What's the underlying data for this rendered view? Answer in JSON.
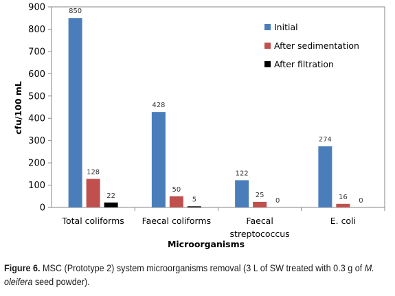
{
  "chart_data": {
    "type": "bar",
    "categories": [
      "Total coliforms",
      "Faecal coliforms",
      "Faecal\nstreptococcus",
      "E. coli"
    ],
    "series": [
      {
        "name": "Initial",
        "color": "#4a7ebb",
        "values": [
          850,
          428,
          122,
          274
        ]
      },
      {
        "name": "After sedimentation",
        "color": "#c0504d",
        "values": [
          128,
          50,
          25,
          16
        ]
      },
      {
        "name": "After filtration",
        "color": "#000000",
        "values": [
          22,
          5,
          0,
          0
        ]
      }
    ],
    "xlabel": "Microorganisms",
    "ylabel": "cfu/100 mL",
    "ylim": [
      0,
      900
    ],
    "yticks": [
      0,
      100,
      200,
      300,
      400,
      500,
      600,
      700,
      800,
      900
    ],
    "grid": false,
    "legend": "top-right"
  },
  "caption": {
    "figure_number": "Figure 6.",
    "text_before": " MSC (Prototype 2) system microorganisms removal (3 L of SW treated with 0.3 g of ",
    "species": "M. oleifera",
    "text_after": " seed powder)."
  }
}
